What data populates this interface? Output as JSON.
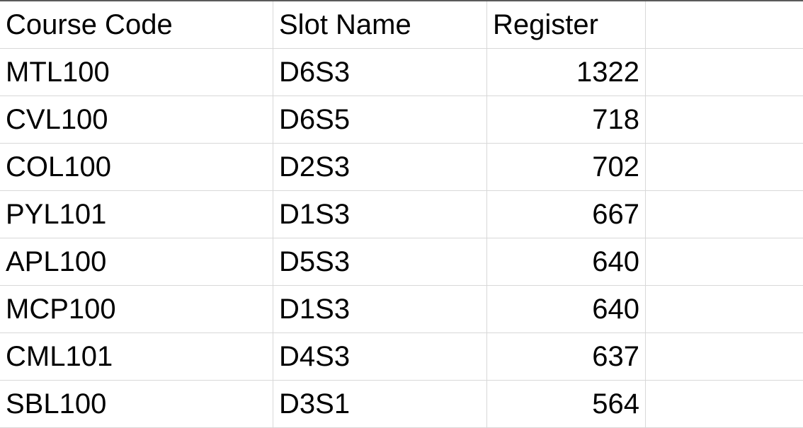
{
  "headers": {
    "course_code": "Course Code",
    "slot_name": "Slot Name",
    "register": "Register"
  },
  "rows": [
    {
      "course_code": "MTL100",
      "slot_name": "D6S3",
      "register": "1322"
    },
    {
      "course_code": "CVL100",
      "slot_name": "D6S5",
      "register": "718"
    },
    {
      "course_code": "COL100",
      "slot_name": "D2S3",
      "register": "702"
    },
    {
      "course_code": "PYL101",
      "slot_name": "D1S3",
      "register": "667"
    },
    {
      "course_code": "APL100",
      "slot_name": "D5S3",
      "register": "640"
    },
    {
      "course_code": "MCP100",
      "slot_name": "D1S3",
      "register": "640"
    },
    {
      "course_code": "CML101",
      "slot_name": "D4S3",
      "register": "637"
    },
    {
      "course_code": "SBL100",
      "slot_name": "D3S1",
      "register": "564"
    }
  ],
  "colors": {
    "gridline": "#d8d8d8",
    "top_border": "#5a5a5a",
    "text": "#000000",
    "background": "#ffffff"
  }
}
